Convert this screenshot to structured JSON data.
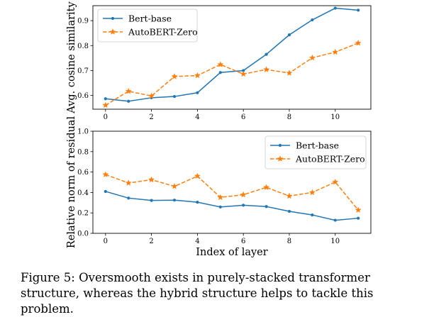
{
  "chart_data": [
    {
      "type": "line",
      "xlabel": "",
      "ylabel": "Avg. cosine similarity",
      "x": [
        0,
        1,
        2,
        3,
        4,
        5,
        6,
        7,
        8,
        9,
        10,
        11
      ],
      "xlim": [
        -0.55,
        11.55
      ],
      "ylim": [
        0.545,
        0.96
      ],
      "xticks": [
        0,
        2,
        4,
        6,
        8,
        10
      ],
      "yticks": [
        0.6,
        0.7,
        0.8,
        0.9
      ],
      "ytick_labels": [
        "0.6",
        "0.7",
        "0.8",
        "0.9"
      ],
      "legend_position": "top-left",
      "series": [
        {
          "name": "Bert-base",
          "color": "#1f77b4",
          "style": "solid",
          "marker": "dot",
          "values": [
            0.587,
            0.577,
            0.591,
            0.596,
            0.611,
            0.692,
            0.7,
            0.765,
            0.843,
            0.903,
            0.95,
            0.942
          ]
        },
        {
          "name": "AutoBERT-Zero",
          "color": "#ff7f0e",
          "style": "dashed",
          "marker": "star",
          "values": [
            0.561,
            0.617,
            0.598,
            0.676,
            0.68,
            0.724,
            0.686,
            0.704,
            0.69,
            0.751,
            0.774,
            0.81
          ]
        }
      ]
    },
    {
      "type": "line",
      "xlabel": "Index of layer",
      "ylabel": "Relative norm of residual",
      "x": [
        0,
        1,
        2,
        3,
        4,
        5,
        6,
        7,
        8,
        9,
        10,
        11
      ],
      "xlim": [
        -0.55,
        11.55
      ],
      "ylim": [
        0,
        1.0
      ],
      "xticks": [
        0,
        2,
        4,
        6,
        8,
        10
      ],
      "yticks": [
        0.0,
        0.2,
        0.4,
        0.6,
        0.8,
        1.0
      ],
      "ytick_labels": [
        "0.0",
        "0.2",
        "0.4",
        "0.6",
        "0.8",
        "1.0"
      ],
      "legend_position": "top-right",
      "series": [
        {
          "name": "Bert-base",
          "color": "#1f77b4",
          "style": "solid",
          "marker": "dot",
          "values": [
            0.41,
            0.345,
            0.322,
            0.325,
            0.305,
            0.258,
            0.275,
            0.262,
            0.215,
            0.18,
            0.128,
            0.148
          ]
        },
        {
          "name": "AutoBERT-Zero",
          "color": "#ff7f0e",
          "style": "dashed",
          "marker": "star",
          "values": [
            0.575,
            0.493,
            0.525,
            0.46,
            0.56,
            0.352,
            0.378,
            0.45,
            0.365,
            0.4,
            0.502,
            0.228
          ]
        }
      ]
    }
  ],
  "caption": {
    "label": "Figure 5:",
    "text": "Oversmooth exists in purely-stacked transformer structure, whereas the hybrid structure helps to tackle this problem."
  }
}
